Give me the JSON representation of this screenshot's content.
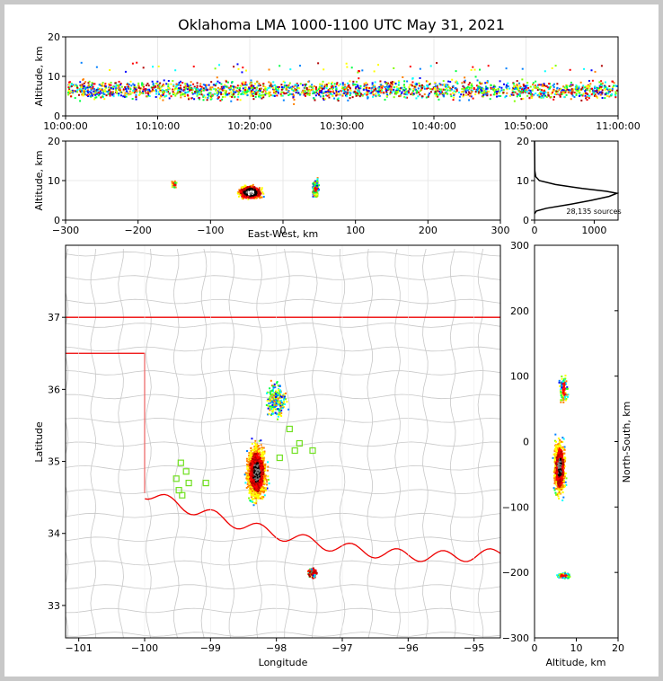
{
  "title": "Oklahoma LMA 1000-1100 UTC May 31, 2021",
  "chart_data": [
    {
      "panel": "altitude-time",
      "type": "scatter",
      "xlabel": "",
      "ylabel": "Altitude, km",
      "x_ticks": [
        "10:00:00",
        "10:10:00",
        "10:20:00",
        "10:30:00",
        "10:40:00",
        "10:50:00",
        "11:00:00"
      ],
      "xlim": [
        "10:00:00",
        "11:00:00"
      ],
      "ylim": [
        0,
        20
      ],
      "y_ticks": [
        0,
        10,
        20
      ],
      "source_altitude_band_km": [
        3,
        10
      ]
    },
    {
      "panel": "east-west-altitude",
      "type": "scatter",
      "xlabel": "East-West, km",
      "ylabel": "Altitude, km",
      "xlim": [
        -300,
        300
      ],
      "x_ticks": [
        -300,
        -200,
        -100,
        0,
        100,
        200,
        300
      ],
      "ylim": [
        0,
        20
      ],
      "y_ticks": [
        0,
        10,
        20
      ],
      "clusters": [
        {
          "x": -45,
          "z": 7,
          "density": "high"
        },
        {
          "x": 45,
          "z": 8,
          "density": "medium"
        },
        {
          "x": -150,
          "z": 9,
          "density": "low"
        }
      ]
    },
    {
      "panel": "altitude-histogram",
      "type": "line",
      "x_ticks": [
        0,
        1000
      ],
      "xlim": [
        0,
        1400
      ],
      "ylim": [
        0,
        20
      ],
      "y_ticks": [
        0,
        10,
        20
      ],
      "annotation": "28,135 sources",
      "profile": [
        {
          "alt": 1.6,
          "count": 0
        },
        {
          "alt": 2.3,
          "count": 30
        },
        {
          "alt": 3.0,
          "count": 200
        },
        {
          "alt": 4.0,
          "count": 600
        },
        {
          "alt": 5.0,
          "count": 950
        },
        {
          "alt": 6.0,
          "count": 1250
        },
        {
          "alt": 6.8,
          "count": 1380
        },
        {
          "alt": 7.3,
          "count": 1200
        },
        {
          "alt": 8.0,
          "count": 800
        },
        {
          "alt": 9.0,
          "count": 350
        },
        {
          "alt": 10.0,
          "count": 80
        },
        {
          "alt": 11.0,
          "count": 20
        },
        {
          "alt": 12.5,
          "count": 5
        },
        {
          "alt": 20.0,
          "count": 0
        }
      ]
    },
    {
      "panel": "plan-view-map",
      "type": "scatter",
      "xlabel": "Longitude",
      "ylabel": "Latitude",
      "xlim": [
        -101.2,
        -94.6
      ],
      "ylim": [
        32.55,
        38.0
      ],
      "x_ticks": [
        -101,
        -100,
        -99,
        -98,
        -97,
        -96,
        -95
      ],
      "y_ticks": [
        33,
        34,
        35,
        36,
        37
      ],
      "stations": [
        {
          "lon": -97.8,
          "lat": 35.45
        },
        {
          "lon": -97.65,
          "lat": 35.25
        },
        {
          "lon": -97.72,
          "lat": 35.15
        },
        {
          "lon": -97.45,
          "lat": 35.15
        },
        {
          "lon": -97.95,
          "lat": 35.05
        },
        {
          "lon": -99.45,
          "lat": 34.98
        },
        {
          "lon": -99.37,
          "lat": 34.86
        },
        {
          "lon": -99.52,
          "lat": 34.76
        },
        {
          "lon": -99.33,
          "lat": 34.7
        },
        {
          "lon": -99.07,
          "lat": 34.7
        },
        {
          "lon": -99.48,
          "lat": 34.6
        },
        {
          "lon": -99.43,
          "lat": 34.53
        }
      ]
    },
    {
      "panel": "altitude-north-south",
      "type": "scatter",
      "xlabel": "Altitude, km",
      "ylabel": "North-South, km",
      "xlim": [
        0,
        20
      ],
      "x_ticks": [
        0,
        10,
        20
      ],
      "ylim": [
        -300,
        300
      ],
      "y_ticks": [
        -300,
        -200,
        -100,
        0,
        100,
        200,
        300
      ],
      "clusters": [
        {
          "y": -40,
          "z": 6,
          "density": "high"
        },
        {
          "y": -205,
          "z": 7,
          "density": "medium"
        },
        {
          "y": 80,
          "z": 7,
          "density": "low"
        }
      ]
    }
  ]
}
